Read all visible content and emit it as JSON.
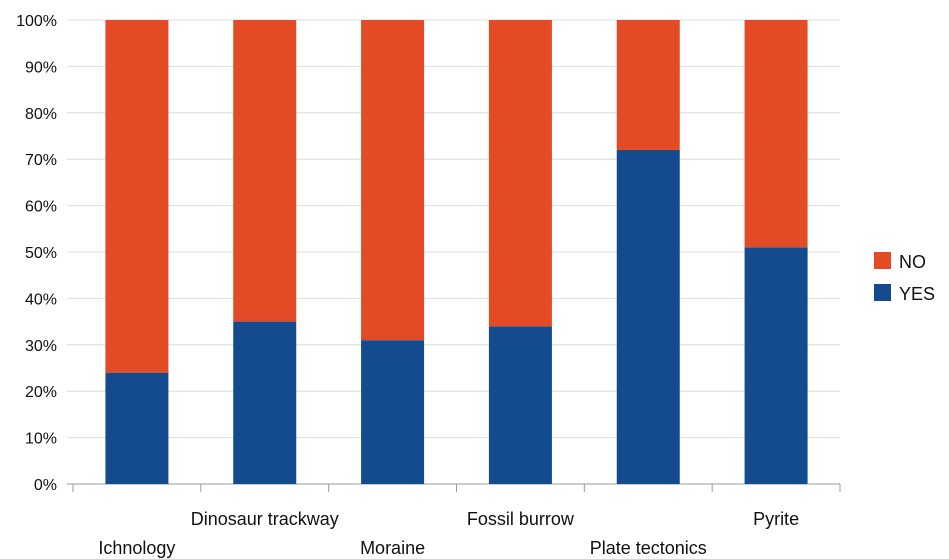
{
  "chart_data": {
    "type": "bar",
    "stacked": true,
    "percent": true,
    "categories": [
      "Ichnology",
      "Dinosaur trackway",
      "Moraine",
      "Fossil burrow",
      "Plate tectonics",
      "Pyrite"
    ],
    "series": [
      {
        "name": "YES",
        "color": "#144a8e",
        "values": [
          24,
          35,
          31,
          34,
          72,
          51
        ]
      },
      {
        "name": "NO",
        "color": "#e34a26",
        "values": [
          76,
          65,
          69,
          66,
          28,
          49
        ]
      }
    ],
    "legend_order": [
      "NO",
      "YES"
    ],
    "y_ticks": [
      "0%",
      "10%",
      "20%",
      "30%",
      "40%",
      "50%",
      "60%",
      "70%",
      "80%",
      "90%",
      "100%"
    ],
    "ylim": [
      0,
      100
    ],
    "grid": true,
    "legend_position": "right",
    "title": "",
    "xlabel": "",
    "ylabel": ""
  }
}
